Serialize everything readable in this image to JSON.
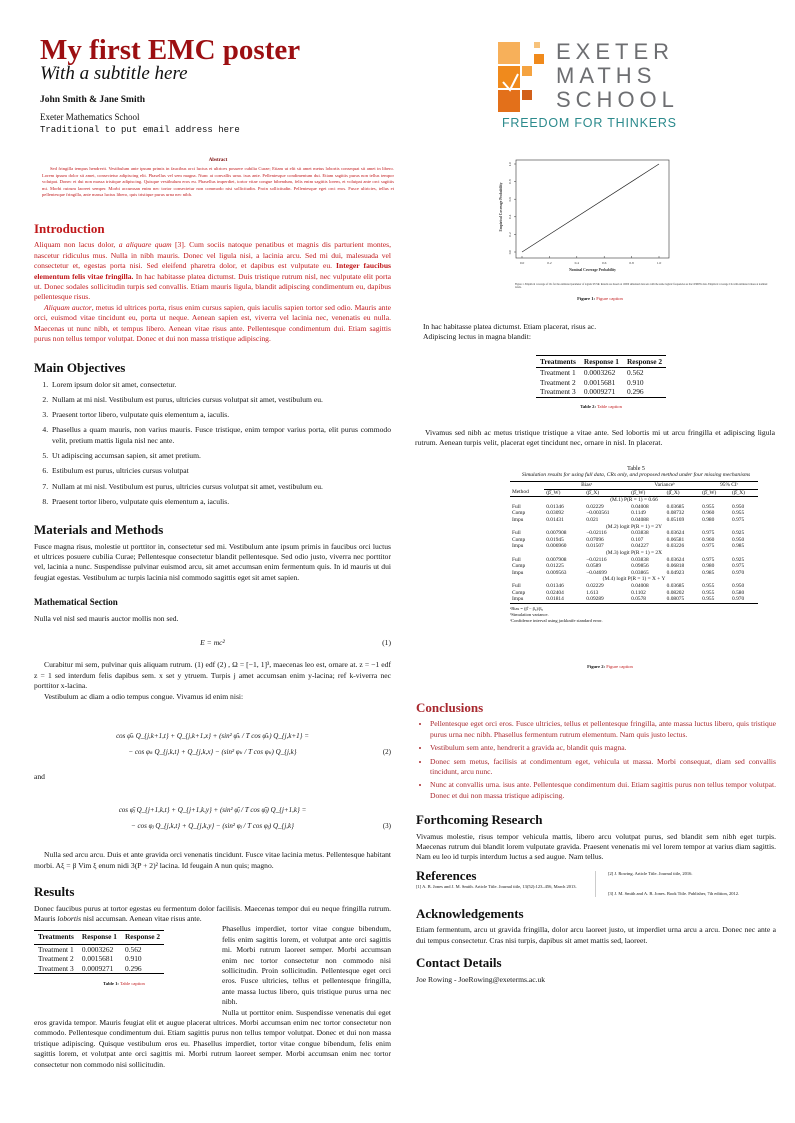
{
  "header": {
    "title": "My first EMC poster",
    "subtitle": "With a subtitle here",
    "authors": "John Smith & Jane Smith",
    "affiliation": "Exeter Mathematics School",
    "email": "Traditional to put email address here"
  },
  "logo": {
    "line1": "EXETER",
    "line2": "MATHS",
    "line3": "SCHOOL",
    "tagline": "FREEDOM FOR THINKERS",
    "colors": {
      "squares": "#f08a1c",
      "text": "#6d6e71",
      "tagline": "#2b8a8c"
    }
  },
  "abstract": {
    "heading": "Abstract",
    "text": "Sed fringilla tempus hendrerit. Vestibulum ante ipsum primis in faucibus orci luctus et ultrices posuere cubilia Curae; Etiam ut elit sit amet metus lobortis consequat sit amet in libero. Lorem ipsum dolor sit amet, consectetur adipiscing elit. Phasellus vel sem magna. Nunc at convallis urna. isus ante. Pellentesque condimentum dui. Etiam sagittis purus non tellus tempor volutpat. Donec et dui non massa tristique adipiscing. Quisque vestibulum eros eu. Phasellus imperdiet, tortor vitae congue bibendum, felis enim sagittis lorem, et volutpat ante orci sagittis mi. Morbi rutrum laoreet semper. Morbi accumsan enim nec tortor consectetur non commodo nisi sollicitudin. Proin sollicitudin. Pellentesque eget orci eros. Fusce ultricies, tellus et pellentesque fringilla, ante massa luctus libero, quis tristique purus urna nec nibh."
  },
  "introduction": {
    "heading": "Introduction",
    "p1_a": "Aliquam non lacus dolor, ",
    "p1_em": "a aliquare quam",
    "p1_b": " [3]. Cum sociis natoque penatibus et magnis dis parturient montes, nascetur ridiculus mus. Nulla in nibh mauris. Donec vel ligula nisi, a lacinia arcu. Sed mi dui, malesuada vel consectetur et, egestas porta nisi. Sed eleifend pharetra dolor, et dapibus est vulputate eu. ",
    "p1_bold": "Integer faucibus elementum felis vitae fringilla.",
    "p1_c": " In hac habitasse platea dictumst. Duis tristique rutrum nisl, nec vulputate elit porta ut. Donec sodales sollicitudin turpis sed convallis. Etiam mauris ligula, blandit adipiscing condimentum eu, dapibus pellentesque risus.",
    "p2_em": "Aliquam auctor",
    "p2": ", metus id ultrices porta, risus enim cursus sapien, quis iaculis sapien tortor sed odio. Mauris ante orci, euismod vitae tincidunt eu, porta ut neque. Aenean sapien est, viverra vel lacinia nec, venenatis eu nulla. Maecenas ut nunc nibh, et tempus libero. Aenean vitae risus ante. Pellentesque condimentum dui. Etiam sagittis purus non tellus tempor volutpat. Donec et dui non massa tristique adipiscing."
  },
  "objectives": {
    "heading": "Main Objectives",
    "items": [
      "Lorem ipsum dolor sit amet, consectetur.",
      "Nullam at mi nisl. Vestibulum est purus, ultricies cursus volutpat sit amet, vestibulum eu.",
      "Praesent tortor libero, vulputate quis elementum a, iaculis.",
      "Phasellus a quam mauris, non varius mauris. Fusce tristique, enim tempor varius porta, elit purus commodo velit, pretium mattis ligula nisl nec ante.",
      "Ut adipiscing accumsan sapien, sit amet pretium.",
      "Estibulum est purus, ultricies cursus volutpat",
      "Nullam at mi nisl. Vestibulum est purus, ultricies cursus volutpat sit amet, vestibulum eu.",
      "Praesent tortor libero, vulputate quis elementum a, iaculis."
    ]
  },
  "methods": {
    "heading": "Materials and Methods",
    "text": "Fusce magna risus, molestie ut porttitor in, consectetur sed mi. Vestibulum ante ipsum primis in faucibus orci luctus et ultrices posuere cubilia Curae; Pellentesque consectetur blandit pellentesque. Sed odio justo, viverra nec porttitor vel, lacinia a nunc. Suspendisse pulvinar euismod arcu, sit amet accumsan enim fermentum quis. In id mauris ut dui feugiat egestas. Vestibulum ac turpis lacinia nisl commodo sagittis eget sit amet sapien.",
    "math_heading": "Mathematical Section",
    "math_intro": "Nulla vel nisl sed mauris auctor mollis non sed.",
    "eq1": "E = mc²",
    "eq1_no": "(1)",
    "p_after": "Curabitur mi sem, pulvinar quis aliquam rutrum. (1) edf (2) , Ω = [−1, 1]³, maecenas leo est, ornare at. z = −1 edf z = 1 sed interdum felis dapibus sem. x set y ytruem. Turpis j amet accumsan enim y-lacina; ref k-viverra nec porttitor x-lacina.",
    "p_after2": "Vestibulum ac diam a odio tempus congue. Vivamus id enim nisi:",
    "eq2_l1": "cos φ̄ₖ Q_{j,k+1,t} + Q_{j,k+1,x} + (sin² φ̄ₖ / T cos φ̄ₖ) Q_{j,k+1} =",
    "eq2_l2": "− cos φₖ Q_{j,k,t} + Q_{j,k,x} − (sin² φₖ / T cos φₖ) Q_{j,k}",
    "eq2_no": "(2)",
    "and": "and",
    "eq3_l1": "cos φ̄ⱼ Q_{j+1,k,t} + Q_{j+1,k,y} + (sin² φ̄ⱼ / T cos φ̄ⱼ) Q_{j+1,k} =",
    "eq3_l2": "− cos φⱼ Q_{j,k,t} + Q_{j,k,y} − (sin² φⱼ / T cos φⱼ) Q_{j,k}",
    "eq3_no": "(3)",
    "p_end": "Nulla sed arcu arcu. Duis et ante gravida orci venenatis tincidunt. Fusce vitae lacinia metus. Pellentesque habitant morbi. Aξ = β Vim ξ enum nidi 3(P + 2)² lacina. Id feugain A nun quis; magno."
  },
  "results": {
    "heading": "Results",
    "p1": "Donec faucibus purus at tortor egestas eu fermentum dolor facilisis. Maecenas tempor dui eu neque fringilla rutrum. Mauris",
    "p1_em": "lobortis",
    "p1_b": "nisl accumsan. Aenean vitae risus ante.",
    "p_side": "Phasellus imperdiet, tortor vitae congue bibendum, felis enim sagittis lorem, et volutpat ante orci sagittis mi. Morbi rutrum laoreet semper. Morbi accumsan enim nec tortor consectetur non commodo nisi sollicitudin. Proin sollicitudin. Pellentesque eget orci eros. Fusce ultricies, tellus et pellentesque fringilla, ante massa luctus libero, quis tristique purus urna nec nibh.",
    "p2_start": "Nulla ut porttitor enim. Suspendisse venenatis dui eget eros",
    "p2": "gravida tempor. Mauris feugiat elit et augue placerat ultrices. Morbi accumsan enim nec tortor consectetur non commodo. Pellentesque condimentum dui. Etiam sagittis purus non tellus tempor volutpat. Donec et dui non massa tristique adipiscing. Quisque vestibulum eros eu. Phasellus imperdiet, tortor vitae congue bibendum, felis enim sagittis lorem, et volutpat ante orci sagittis mi. Morbi rutrum laoreet semper. Morbi accumsan enim nec tortor consectetur non commodo nisi sollicitudin.",
    "table": {
      "headers": [
        "Treatments",
        "Response 1",
        "Response 2"
      ],
      "rows": [
        [
          "Treatment 1",
          "0.0003262",
          "0.562"
        ],
        [
          "Treatment 2",
          "0.0015681",
          "0.910"
        ],
        [
          "Treatment 3",
          "0.0009271",
          "0.296"
        ]
      ],
      "caption_label": "Table 1:",
      "caption": "Table caption"
    }
  },
  "figure1": {
    "xlabel": "Nominal Coverage Probability",
    "ylabel": "Empirical Coverage Probability",
    "xticks": [
      "0.0",
      "0.2",
      "0.4",
      "0.6",
      "0.8",
      "1.0"
    ],
    "yticks": [
      "0.0",
      "0.2",
      "0.4",
      "0.6",
      "0.8",
      "1.0"
    ],
    "inner_caption": "Figure 1.   Empirical coverage of CIs for the estimated parameter of logistic PCSR. Results are based on 10000 simulated data sets with the same logistic frequencies as the CPMISS data. Empirical coverage CIs with estimated values at nominal levels.",
    "caption_label": "Figure 1:",
    "caption": "Figure caption"
  },
  "right_text": {
    "p1_l1": "In hac habitasse platea dictumst. Etiam placerat, risus ac.",
    "p1_l2": "Adipiscing lectus in magna blandit:",
    "table2": {
      "headers": [
        "Treatments",
        "Response 1",
        "Response 2"
      ],
      "rows": [
        [
          "Treatment 1",
          "0.0003262",
          "0.562"
        ],
        [
          "Treatment 2",
          "0.0015681",
          "0.910"
        ],
        [
          "Treatment 3",
          "0.0009271",
          "0.296"
        ]
      ],
      "caption_label": "Table 2:",
      "caption": "Table caption"
    },
    "p2": "Vivamus sed nibh ac metus tristique tristique a vitae ante. Sed lobortis mi ut arcu fringilla et adipiscing ligula rutrum. Aenean turpis velit, placerat eget tincidunt nec, ornare in nisl. In placerat."
  },
  "table5": {
    "title": "Table 5",
    "subtitle": "Simulation results for using full data, CRs only, and proposed method under four missing mechanisms",
    "group_headers": [
      "Biasᵃ",
      "Varianceᵇ",
      "95% CIᶜ"
    ],
    "col_headers": [
      "Method",
      "(β̂_W)",
      "(β̂_X)",
      "(β̂_W)",
      "(β̂_X)",
      "(β̂_W)",
      "(β̂_X)"
    ],
    "blocks": [
      {
        "label": "(M.1) P(R = 1) = 0.66",
        "rows": [
          [
            "Full",
            "0.01346",
            "0.02229",
            "0.04008",
            "0.03685",
            "0.955",
            "0.950"
          ],
          [
            "Comp",
            "0.03092",
            "−0.003561",
            "0.1149",
            "0.08732",
            "0.960",
            "0.955"
          ],
          [
            "Impu",
            "0.01431",
            "0.021",
            "0.04088",
            "0.05169",
            "0.980",
            "0.975"
          ]
        ]
      },
      {
        "label": "(M.2) logit P(R = 1) = 2Y",
        "rows": [
          [
            "Full",
            "0.007908",
            "−0.02116",
            "0.03838",
            "0.03624",
            "0.975",
            "0.925"
          ],
          [
            "Comp",
            "0.01945",
            "0.07096",
            "0.107",
            "0.06581",
            "0.960",
            "0.950"
          ],
          [
            "Impu",
            "0.006960",
            "0.01507",
            "0.04227",
            "0.03226",
            "0.975",
            "0.985"
          ]
        ]
      },
      {
        "label": "(M.3) logit P(R = 1) = 2X",
        "rows": [
          [
            "Full",
            "0.007908",
            "−0.02116",
            "0.03838",
            "0.03624",
            "0.975",
            "0.925"
          ],
          [
            "Comp",
            "0.01225",
            "0.0589",
            "0.09856",
            "0.06818",
            "0.980",
            "0.975"
          ],
          [
            "Impu",
            "0.009563",
            "−0.04699",
            "0.03865",
            "0.04923",
            "0.985",
            "0.970"
          ]
        ]
      },
      {
        "label": "(M.4) logit P(R = 1) = X + Y",
        "rows": [
          [
            "Full",
            "0.01346",
            "0.02229",
            "0.04008",
            "0.03685",
            "0.955",
            "0.950"
          ],
          [
            "Comp",
            "0.02404",
            "1.613",
            "0.1102",
            "0.08202",
            "0.955",
            "0.580"
          ],
          [
            "Impu",
            "0.01814",
            "0.09289",
            "0.0578",
            "0.08075",
            "0.955",
            "0.970"
          ]
        ]
      }
    ],
    "footnotes": [
      "ᵃBias = (β̂ − β₀)/β₀",
      "ᵇSimulation variance.",
      "ᶜConfidence interval using jackknife standard error."
    ],
    "caption_label": "Figure 2:",
    "caption": "Figure caption"
  },
  "conclusions": {
    "heading": "Conclusions",
    "items": [
      "Pellentesque eget orci eros. Fusce ultricies, tellus et pellentesque fringilla, ante massa luctus libero, quis tristique purus urna nec nibh. Phasellus fermentum rutrum elementum. Nam quis justo lectus.",
      "Vestibulum sem ante, hendrerit a gravida ac, blandit quis magna.",
      "Donec sem metus, facilisis at condimentum eget, vehicula ut massa. Morbi consequat, diam sed convallis tincidunt, arcu nunc.",
      "Nunc at convallis urna. isus ante. Pellentesque condimentum dui. Etiam sagittis purus non tellus tempor volutpat. Donec et dui non massa tristique adipiscing."
    ]
  },
  "forthcoming": {
    "heading": "Forthcoming Research",
    "text": "Vivamus molestie, risus tempor vehicula mattis, libero arcu volutpat purus, sed blandit sem nibh eget turpis. Maecenas rutrum dui blandit lorem vulputate gravida. Praesent venenatis mi vel lorem tempor at varius diam sagittis. Nam eu leo id turpis interdum luctus a sed augue. Nam tellus."
  },
  "references": {
    "heading": "References",
    "items": [
      "[1] A. B. Jones and J. M. Smith. Article Title. Journal title, 13(52):123–456, March 2013.",
      "[2] J. Rowing. Article Title. Journal title, 2016.",
      "[3] J. M. Smith and A. B. Jones. Book Title. Publisher, 7th edition, 2012."
    ]
  },
  "acknowledgements": {
    "heading": "Acknowledgements",
    "text": "Etiam fermentum, arcu ut gravida fringilla, dolor arcu laoreet justo, ut imperdiet urna arcu a arcu. Donec nec ante a dui tempus consectetur. Cras nisi turpis, dapibus sit amet mattis sed, laoreet."
  },
  "contact": {
    "heading": "Contact Details",
    "text": "Joe Rowing - JoeRowing@exeterms.ac.uk"
  }
}
